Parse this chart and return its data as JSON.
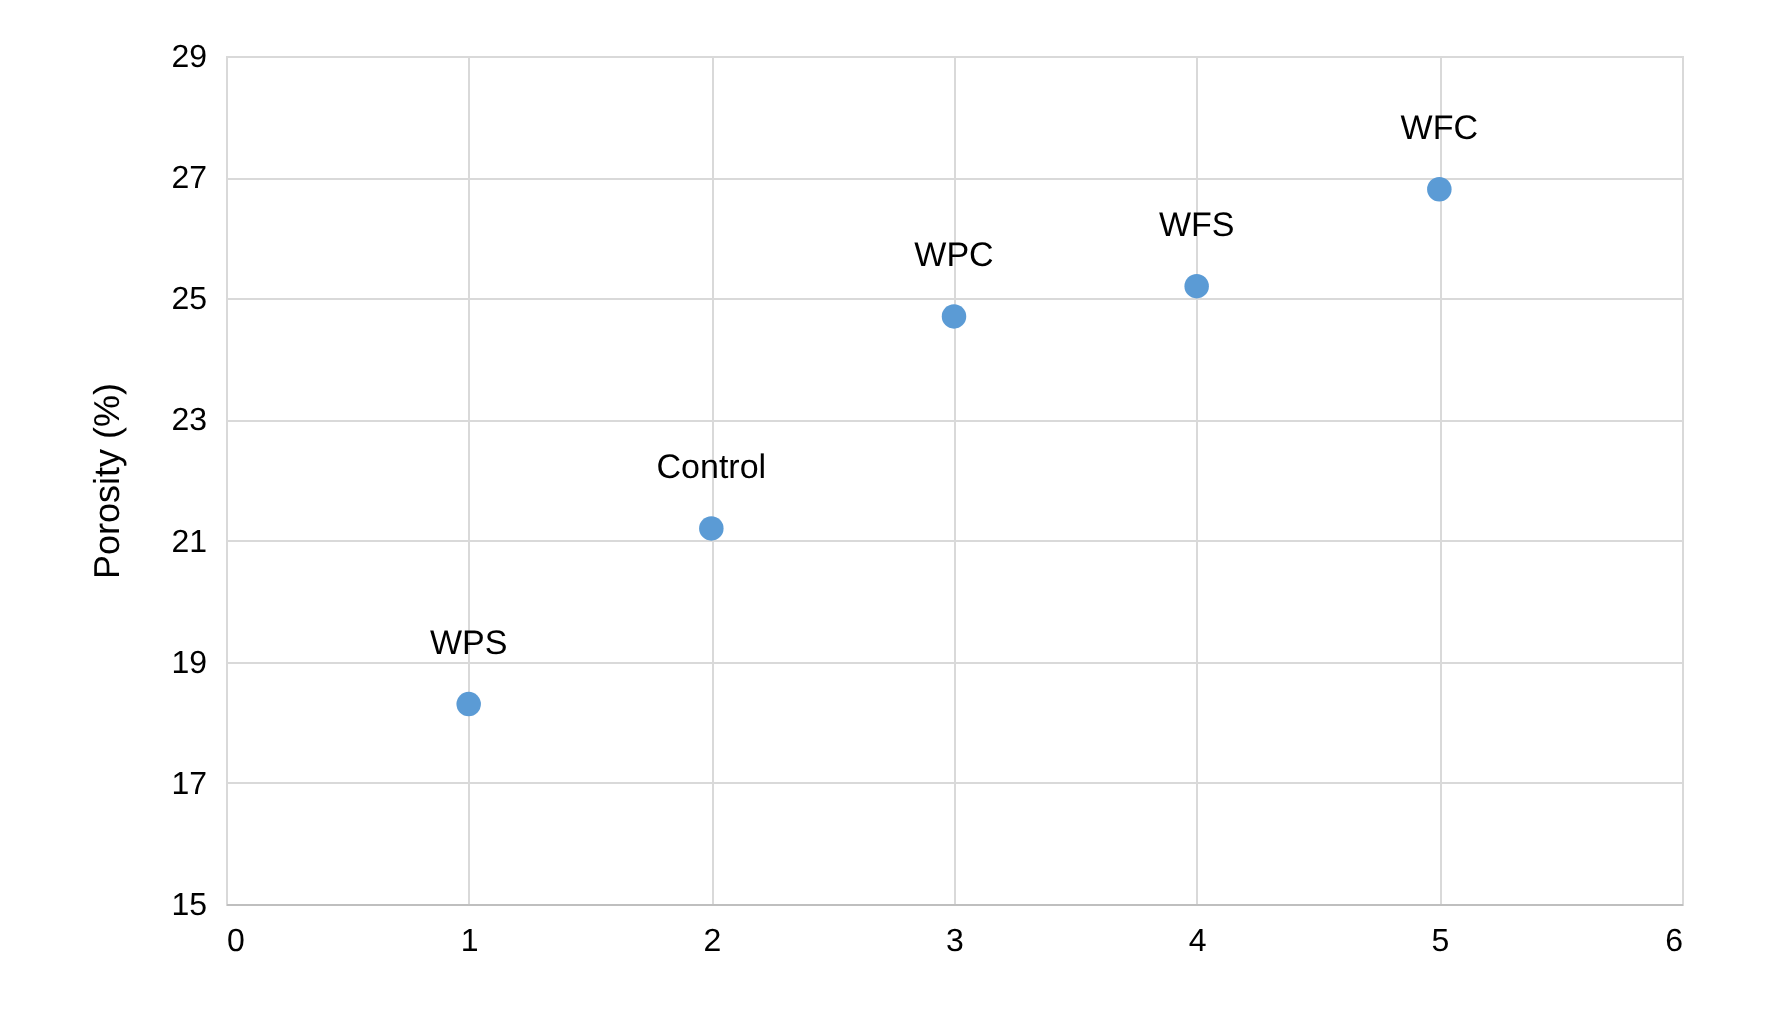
{
  "chart_data": {
    "type": "scatter",
    "ylabel": "Porosity (%)",
    "x": [
      1,
      2,
      3,
      4,
      5
    ],
    "series": [
      {
        "color": "#5b9bd5",
        "values": [
          18.3,
          21.2,
          24.7,
          25.2,
          26.8
        ]
      }
    ],
    "annotations": [
      {
        "text": "WPS",
        "x": 1,
        "y": 18.3
      },
      {
        "text": "Control",
        "x": 2,
        "y": 21.2
      },
      {
        "text": "WPC",
        "x": 3,
        "y": 24.7
      },
      {
        "text": "WFS",
        "x": 4,
        "y": 25.2
      },
      {
        "text": "WFC",
        "x": 5,
        "y": 26.8
      }
    ],
    "xlim": [
      0,
      6
    ],
    "xticks": [
      0,
      1,
      2,
      3,
      4,
      5,
      6
    ],
    "ylim": [
      15,
      29
    ],
    "yticks": [
      15,
      17,
      19,
      21,
      23,
      25,
      27,
      29
    ],
    "grid": true,
    "marker": "circle"
  }
}
